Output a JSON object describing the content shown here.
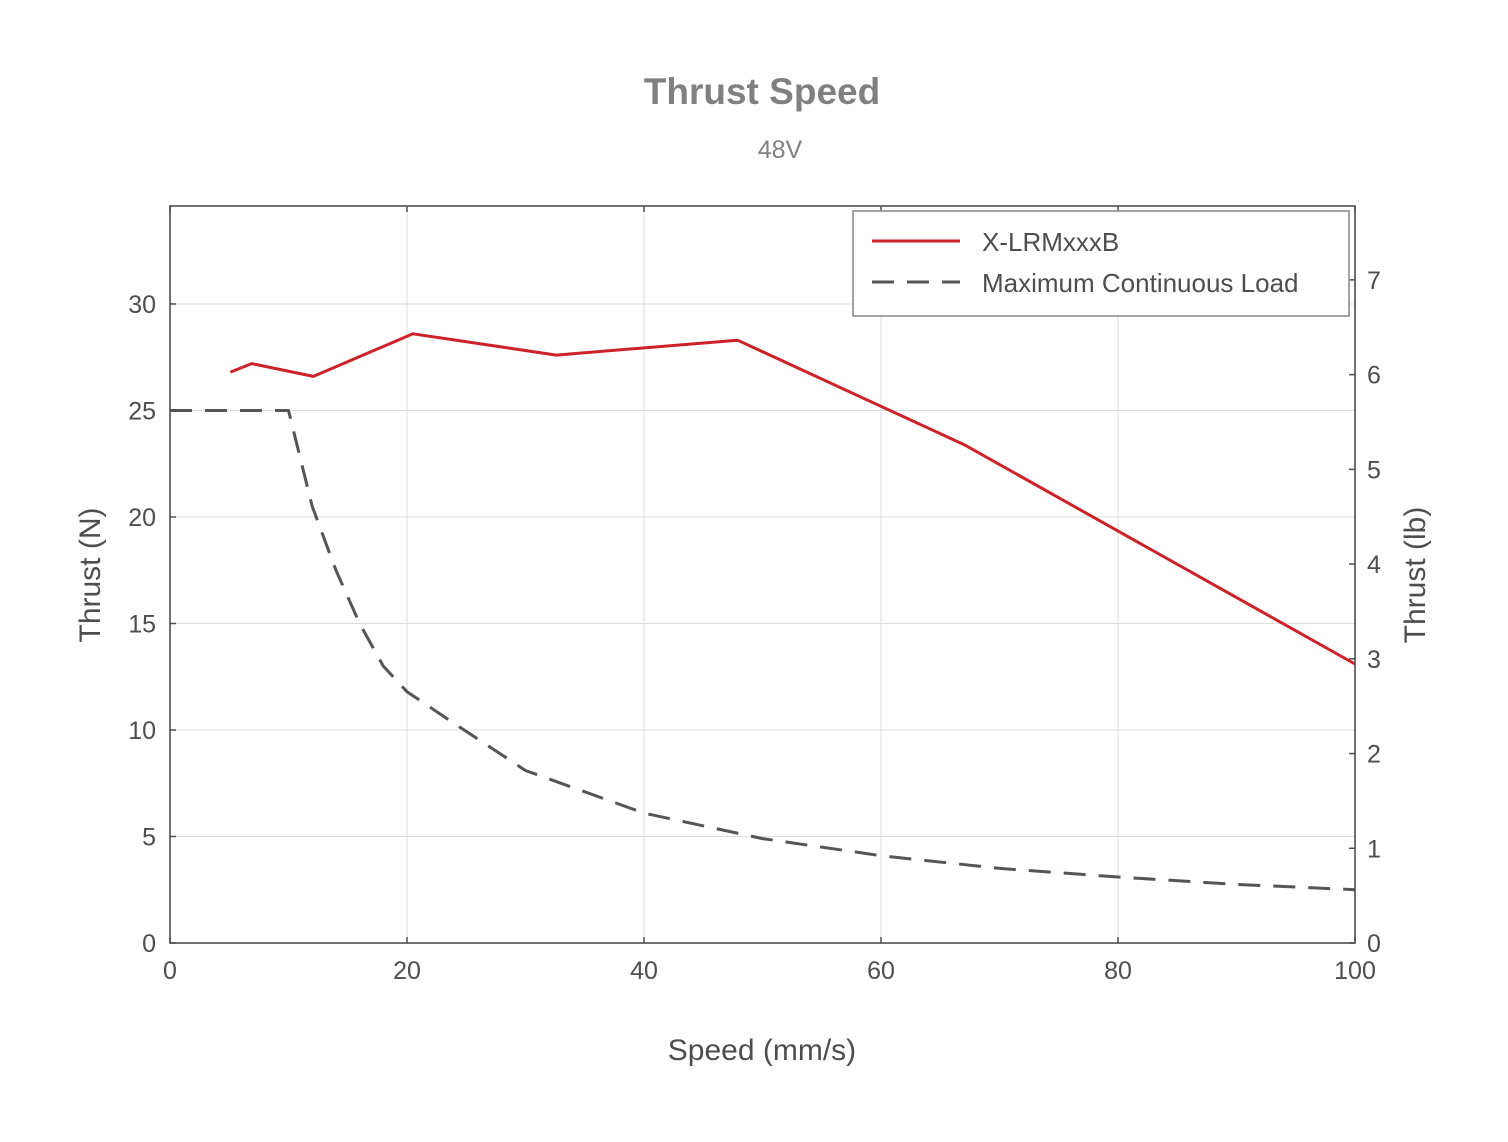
{
  "chart_data": {
    "type": "line",
    "title": "Thrust Speed",
    "subtitle": "48V",
    "xlabel": "Speed (mm/s)",
    "ylabel": "Thrust (N)",
    "y2label": "Thrust (lb)",
    "xlim": [
      0,
      100
    ],
    "ylim": [
      0,
      34.6
    ],
    "y2lim": [
      0,
      7.78
    ],
    "xticks": [
      0,
      20,
      40,
      60,
      80,
      100
    ],
    "yticks": [
      0,
      5,
      10,
      15,
      20,
      25,
      30
    ],
    "y2ticks": [
      0,
      1,
      2,
      3,
      4,
      5,
      6,
      7
    ],
    "grid": true,
    "legend_position": "top-right",
    "series": [
      {
        "name": "X-LRMxxxB",
        "color": "#cc2229",
        "style": "solid",
        "x": [
          5.1,
          6.9,
          12.1,
          20.5,
          32.6,
          47.9,
          67,
          100
        ],
        "y": [
          26.8,
          27.2,
          26.6,
          28.6,
          27.6,
          28.3,
          23.4,
          13.1
        ]
      },
      {
        "name": "Maximum Continuous Load",
        "color": "#555555",
        "style": "dashed",
        "x": [
          0,
          5,
          10,
          12,
          14,
          16,
          18,
          20,
          24,
          30,
          40,
          50,
          60,
          70,
          80,
          90,
          100
        ],
        "y": [
          25.0,
          25.0,
          25.0,
          20.5,
          17.5,
          15.0,
          13.0,
          11.8,
          10.3,
          8.1,
          6.1,
          4.9,
          4.1,
          3.5,
          3.1,
          2.75,
          2.5
        ]
      }
    ]
  }
}
